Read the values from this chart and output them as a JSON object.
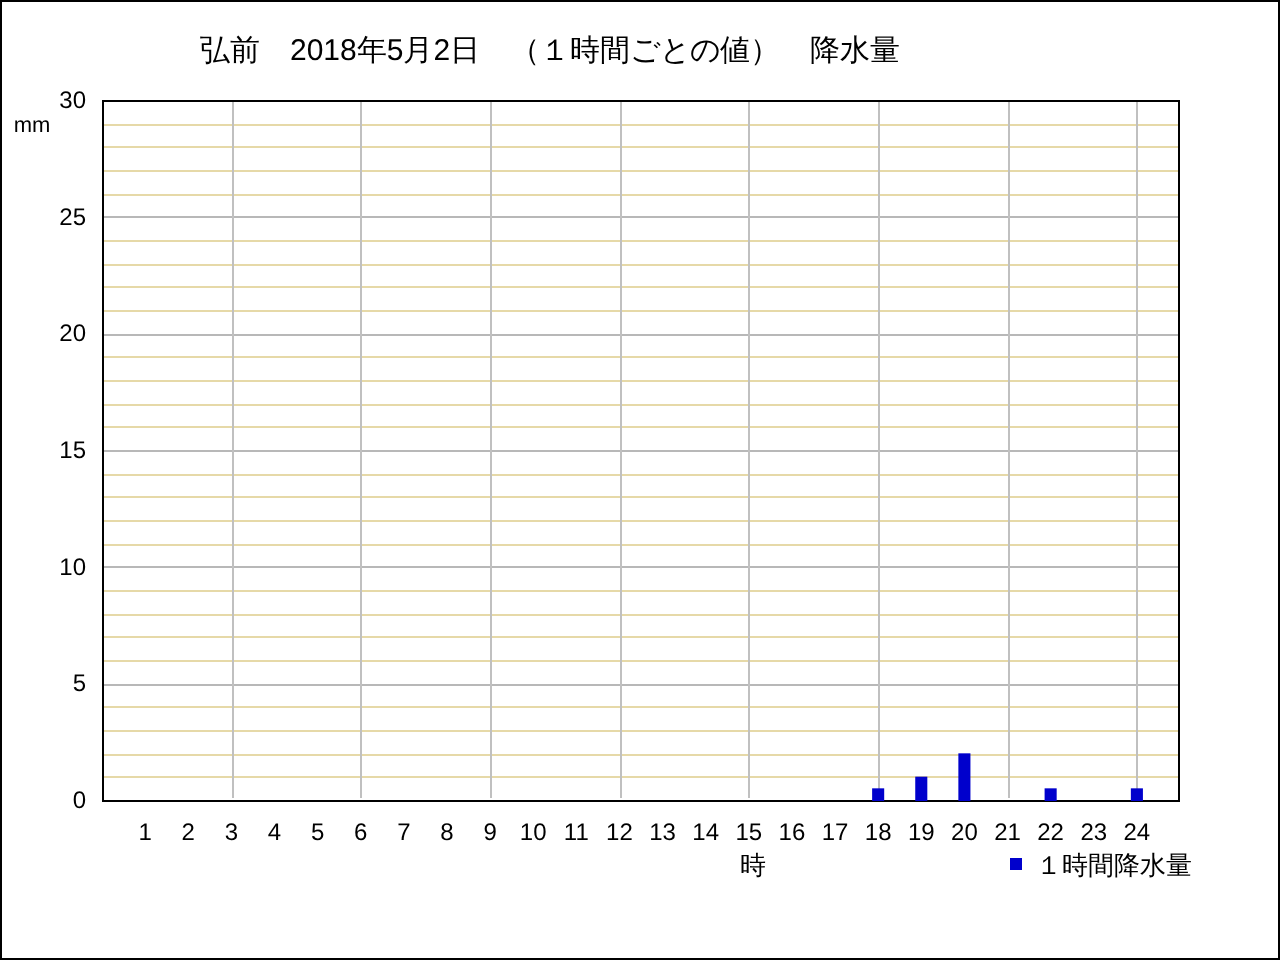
{
  "chart_data": {
    "type": "bar",
    "title": "弘前　2018年5月2日　（１時間ごとの値）　降水量",
    "xlabel": "時",
    "ylabel": "mm",
    "x": [
      18,
      19,
      20,
      22,
      24
    ],
    "series": [
      {
        "name": "１時間降水量",
        "color": "#0000cc",
        "values": [
          0.5,
          1,
          2,
          0.5,
          0.5
        ]
      }
    ],
    "xlim": [
      0,
      25
    ],
    "xticks": [
      1,
      2,
      3,
      4,
      5,
      6,
      7,
      8,
      9,
      10,
      11,
      12,
      13,
      14,
      15,
      16,
      17,
      18,
      19,
      20,
      21,
      22,
      23,
      24
    ],
    "ylim": [
      0,
      30
    ],
    "yticks": [
      0,
      {
        "value": 1,
        "label": null
      },
      {
        "value": 2,
        "label": null
      },
      {
        "value": 3,
        "label": null
      },
      {
        "value": 4,
        "label": null
      },
      5,
      {
        "value": 6,
        "label": null
      },
      {
        "value": 7,
        "label": null
      },
      {
        "value": 8,
        "label": null
      },
      {
        "value": 9,
        "label": null
      },
      10,
      {
        "value": 11,
        "label": null
      },
      {
        "value": 12,
        "label": null
      },
      {
        "value": 13,
        "label": null
      },
      {
        "value": 14,
        "label": null
      },
      15,
      {
        "value": 16,
        "label": null
      },
      {
        "value": 17,
        "label": null
      },
      {
        "value": 18,
        "label": null
      },
      {
        "value": 19,
        "label": null
      },
      20,
      {
        "value": 21,
        "label": null
      },
      {
        "value": 22,
        "label": null
      },
      {
        "value": 23,
        "label": null
      },
      {
        "value": 24,
        "label": null
      },
      25,
      {
        "value": 26,
        "label": null
      },
      {
        "value": 27,
        "label": null
      },
      {
        "value": 28,
        "label": null
      },
      {
        "value": 29,
        "label": null
      },
      30
    ],
    "grid": "y",
    "ref_lines": [
      {
        "axis": "x",
        "value": 3,
        "color": "#c0c0c0"
      },
      {
        "axis": "x",
        "value": 6,
        "color": "#c0c0c0"
      },
      {
        "axis": "x",
        "value": 9,
        "color": "#c0c0c0"
      },
      {
        "axis": "x",
        "value": 12,
        "color": "#c0c0c0"
      },
      {
        "axis": "x",
        "value": 15,
        "color": "#c0c0c0"
      },
      {
        "axis": "x",
        "value": 18,
        "color": "#c0c0c0"
      },
      {
        "axis": "x",
        "value": 21,
        "color": "#c0c0c0"
      },
      {
        "axis": "x",
        "value": 24,
        "color": "#c0c0c0"
      }
    ],
    "legend": "bottom right"
  }
}
